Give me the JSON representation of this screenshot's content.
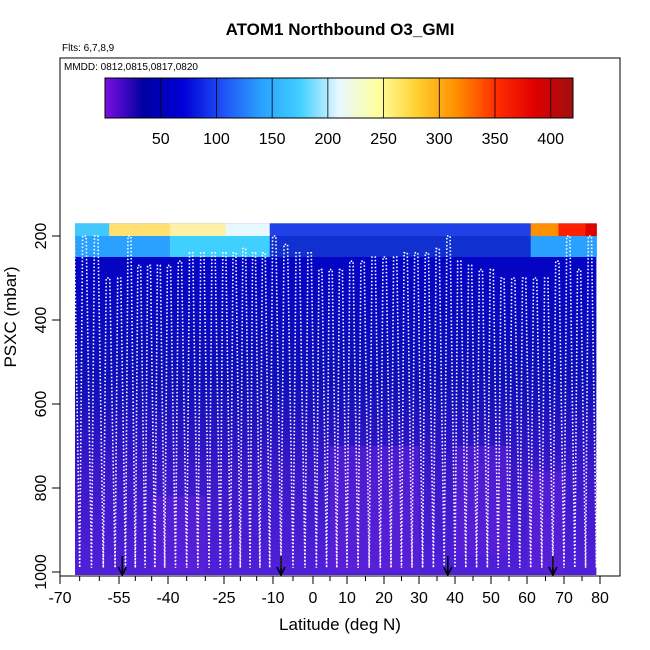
{
  "chart_data": {
    "type": "heatmap",
    "title": "ATOM1 Northbound O3_GMI",
    "subtitle": "Flts: 6,7,8,9",
    "annotation": "MMDD: 0812,0815,0817,0820",
    "xlabel": "Latitude (deg N)",
    "ylabel": "PSXC (mbar)",
    "xlim": [
      -70,
      85
    ],
    "ylim": [
      1000,
      150
    ],
    "x_ticks": [
      -70,
      -55,
      -40,
      -25,
      -10,
      0,
      10,
      20,
      30,
      40,
      50,
      60,
      70,
      80
    ],
    "x_tick_labels": [
      "-70",
      "-55",
      "-40",
      "-25",
      "-10",
      "0",
      "10",
      "20",
      "30",
      "40",
      "50",
      "60",
      "70",
      "80"
    ],
    "y_ticks": [
      200,
      400,
      600,
      800,
      1000
    ],
    "y_tick_labels": [
      "200",
      "400",
      "600",
      "800",
      "1000"
    ],
    "colorbar": {
      "range": [
        0,
        420
      ],
      "ticks": [
        50,
        100,
        150,
        200,
        250,
        300,
        350,
        400
      ],
      "tick_labels": [
        "50",
        "100",
        "150",
        "200",
        "250",
        "300",
        "350",
        "400"
      ],
      "colors": [
        "#7a10e0",
        "#0000a0",
        "#0000d8",
        "#1f4ff5",
        "#2aa0ff",
        "#40d0ff",
        "#e8f8ff",
        "#ffffa0",
        "#ffd030",
        "#ff9000",
        "#ff3000",
        "#e00000",
        "#a01010"
      ]
    },
    "flight_marker_latitudes": [
      -54,
      -8,
      38,
      67
    ],
    "profile_latitudes": [
      -68,
      -65,
      -62,
      -59,
      -56,
      -53,
      -50,
      -47,
      -44,
      -41,
      -38,
      -35,
      -32,
      -29,
      -26,
      -23,
      -20,
      -17,
      -14,
      -11,
      -8,
      -5,
      -2,
      1,
      4,
      7,
      10,
      13,
      16,
      19,
      22,
      25,
      28,
      31,
      34,
      37,
      40,
      43,
      46,
      49,
      52,
      55,
      58,
      61,
      64,
      67,
      70,
      73,
      76,
      79
    ],
    "profile_top_pressures": [
      200,
      200,
      200,
      300,
      300,
      200,
      270,
      270,
      270,
      270,
      260,
      240,
      240,
      240,
      240,
      240,
      230,
      240,
      240,
      200,
      220,
      240,
      240,
      280,
      280,
      280,
      260,
      260,
      250,
      250,
      250,
      240,
      240,
      240,
      230,
      200,
      260,
      270,
      280,
      280,
      300,
      300,
      300,
      300,
      300,
      260,
      200,
      280,
      200,
      200
    ]
  }
}
